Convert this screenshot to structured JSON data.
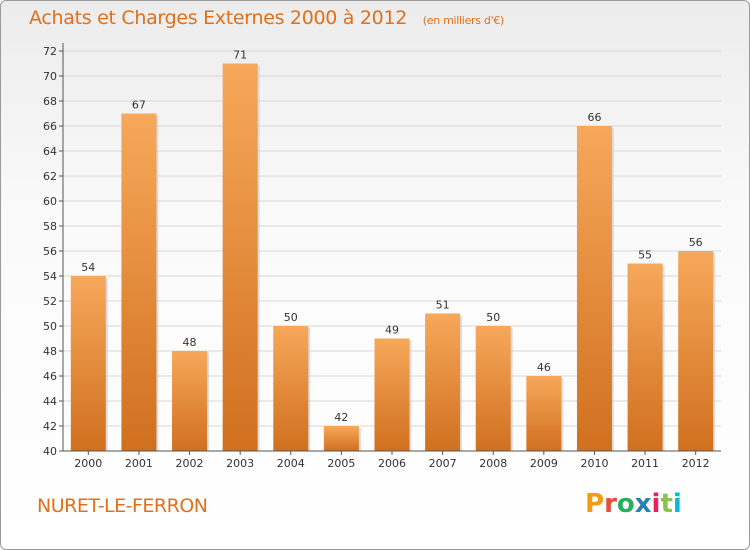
{
  "header": {
    "title": "Achats et Charges Externes 2000 à 2012",
    "unit": "(en milliers d'€)"
  },
  "footer": {
    "place": "NURET-LE-FERRON",
    "logo": "Proxiti",
    "logo_colors": [
      "#f39c12",
      "#e74c3c",
      "#27ae60",
      "#2980b9",
      "#e91e63",
      "#8bc34a",
      "#00bcd4"
    ]
  },
  "colors": {
    "accent": "#e0701a",
    "bar_top": "#f7a85a",
    "bar_bottom": "#d0701f"
  },
  "chart_data": {
    "type": "bar",
    "title": "Achats et Charges Externes 2000 à 2012",
    "subtitle": "(en milliers d'€)",
    "categories": [
      "2000",
      "2001",
      "2002",
      "2003",
      "2004",
      "2005",
      "2006",
      "2007",
      "2008",
      "2009",
      "2010",
      "2011",
      "2012"
    ],
    "values": [
      54,
      67,
      48,
      71,
      50,
      42,
      49,
      51,
      50,
      46,
      66,
      55,
      56
    ],
    "ylim": [
      40,
      72
    ],
    "yticks": [
      40,
      42,
      44,
      46,
      48,
      50,
      52,
      54,
      56,
      58,
      60,
      62,
      64,
      66,
      68,
      70,
      72
    ],
    "grid": true,
    "xlabel": "",
    "ylabel": ""
  }
}
